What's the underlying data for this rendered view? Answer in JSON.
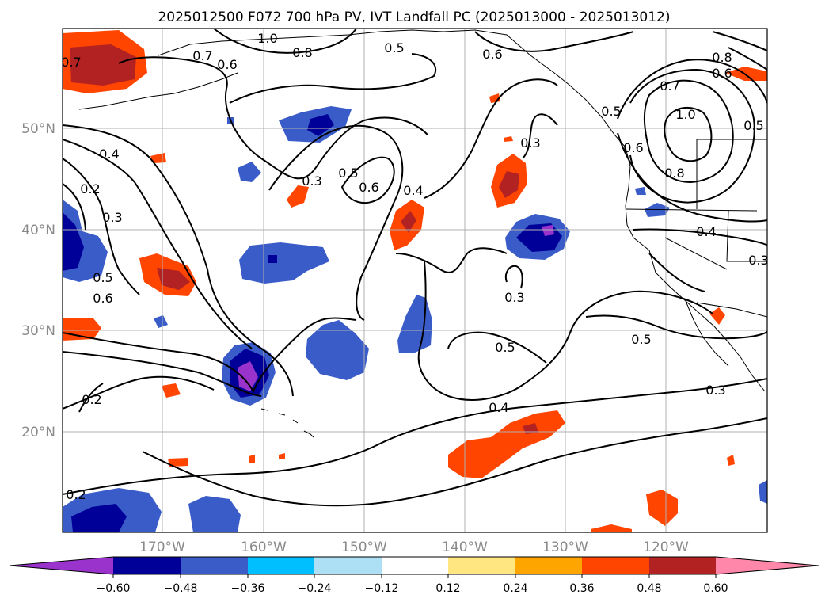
{
  "title": "2025012500 F072 700 hPa PV, IVT Landfall PC (2025013000 - 2025013012)",
  "map": {
    "lat_labels": [
      "50°N",
      "40°N",
      "30°N",
      "20°N"
    ],
    "lon_labels": [
      "170°W",
      "160°W",
      "150°W",
      "140°W",
      "130°W",
      "120°W"
    ]
  },
  "colorbar": {
    "colors": [
      "#9933cc",
      "#000099",
      "#3a5cc9",
      "#00bfff",
      "#aee0f5",
      "#ffffff",
      "#ffe680",
      "#ffa500",
      "#ff4500",
      "#b22222",
      "#ff88aa"
    ],
    "tick_labels": [
      "−0.60",
      "−0.48",
      "−0.36",
      "−0.24",
      "−0.12",
      "0.12",
      "0.24",
      "0.36",
      "0.48",
      "0.60"
    ]
  },
  "contour_labels": [
    "0.7",
    "0.6",
    "0.8",
    "1.0",
    "0.5",
    "0.6",
    "0.6",
    "0.5",
    "0.7",
    "1.0",
    "0.8",
    "0.6",
    "0.8",
    "0.5",
    "0.7",
    "0.4",
    "0.2",
    "0.3",
    "0.5",
    "0.6",
    "0.3",
    "0.5",
    "0.6",
    "0.4",
    "0.3",
    "0.4",
    "0.3",
    "0.3",
    "0.5",
    "0.5",
    "0.3",
    "0.4",
    "0.2",
    "0.2"
  ],
  "land_color": "#000000",
  "grid_color": "#b0b0b0"
}
